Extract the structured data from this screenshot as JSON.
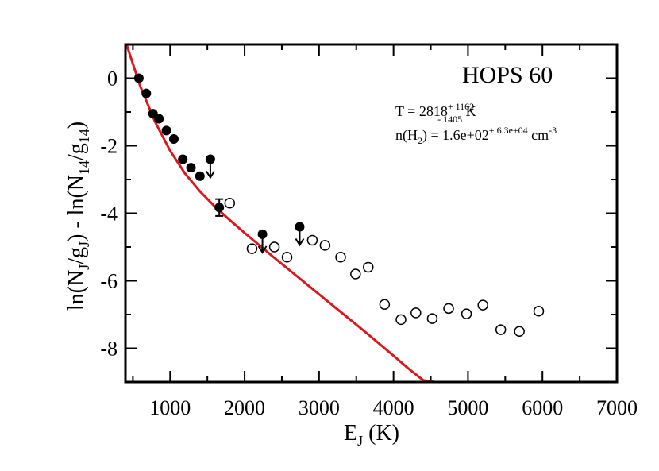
{
  "chart_data": {
    "type": "scatter",
    "title": "HOPS 60",
    "xlabel": {
      "main": "E",
      "sub": "J",
      "rest": " (K)"
    },
    "ylabel": {
      "p1": "ln(N",
      "s1": "J",
      "p2": "/g",
      "s2": "J",
      "p3": ") - ln(N",
      "s3": "14",
      "p4": "/g",
      "s4": "14",
      "p5": ")"
    },
    "xlim": [
      400,
      7000
    ],
    "ylim": [
      -9,
      1
    ],
    "xticks": [
      1000,
      2000,
      3000,
      4000,
      5000,
      6000,
      7000
    ],
    "xtick_labels": [
      "1000",
      "2000",
      "3000",
      "4000",
      "5000",
      "6000",
      "7000"
    ],
    "yticks": [
      0,
      -2,
      -4,
      -6,
      -8
    ],
    "ytick_labels": [
      "0",
      "-2",
      "-4",
      "-6",
      "-8"
    ],
    "annotations": {
      "temp": {
        "prefix": "T = 2818",
        "sup": "+ 1162",
        "sub": "- 1405",
        "suffix": " K"
      },
      "density": {
        "prefix": "n(H",
        "sub": "2",
        "mid": ") =  1.6e+02",
        "sup": "+ 6.3e+04",
        "unit": "  cm",
        "unit_sup": "-3"
      }
    },
    "series": [
      {
        "marker": "filled-circle",
        "x": [
          580,
          680,
          770,
          850,
          950,
          1050,
          1170,
          1280,
          1400
        ],
        "y": [
          0.0,
          -0.45,
          -1.05,
          -1.2,
          -1.55,
          -1.8,
          -2.4,
          -2.65,
          -2.9
        ]
      },
      {
        "marker": "filled-circle-errorbar",
        "x": [
          1660
        ],
        "y": [
          -3.83
        ],
        "yerr": [
          0.25
        ]
      },
      {
        "marker": "upper-limit",
        "x": [
          1540,
          2240,
          2740
        ],
        "y": [
          -2.4,
          -4.62,
          -4.4
        ]
      },
      {
        "marker": "open-circle",
        "x": [
          1800,
          2100,
          2400,
          2570,
          2910,
          3080,
          3290,
          3490,
          3660,
          3880,
          4100,
          4300,
          4520,
          4740,
          4980,
          5200,
          5440,
          5690,
          5950
        ],
        "y": [
          -3.7,
          -5.05,
          -5.0,
          -5.3,
          -4.8,
          -4.95,
          -5.3,
          -5.8,
          -5.6,
          -6.7,
          -7.15,
          -6.95,
          -7.12,
          -6.82,
          -6.98,
          -6.72,
          -7.45,
          -7.5,
          -6.9
        ]
      },
      {
        "type": "line",
        "color": "#e0161e",
        "x": [
          400,
          600,
          800,
          1000,
          1200,
          1400,
          1600,
          1800,
          2000,
          2200,
          2400,
          2600,
          2800,
          3000,
          3200,
          3400,
          3600,
          3800,
          4000,
          4200,
          4400,
          4550
        ],
        "y": [
          1.1,
          -0.25,
          -1.3,
          -2.15,
          -2.82,
          -3.35,
          -3.8,
          -4.2,
          -4.58,
          -4.95,
          -5.32,
          -5.68,
          -6.04,
          -6.4,
          -6.76,
          -7.12,
          -7.48,
          -7.85,
          -8.22,
          -8.6,
          -8.95,
          -9.0
        ]
      }
    ],
    "grid": false,
    "colors": {
      "fit_line": "#e0161e",
      "axes": "#000000"
    }
  }
}
